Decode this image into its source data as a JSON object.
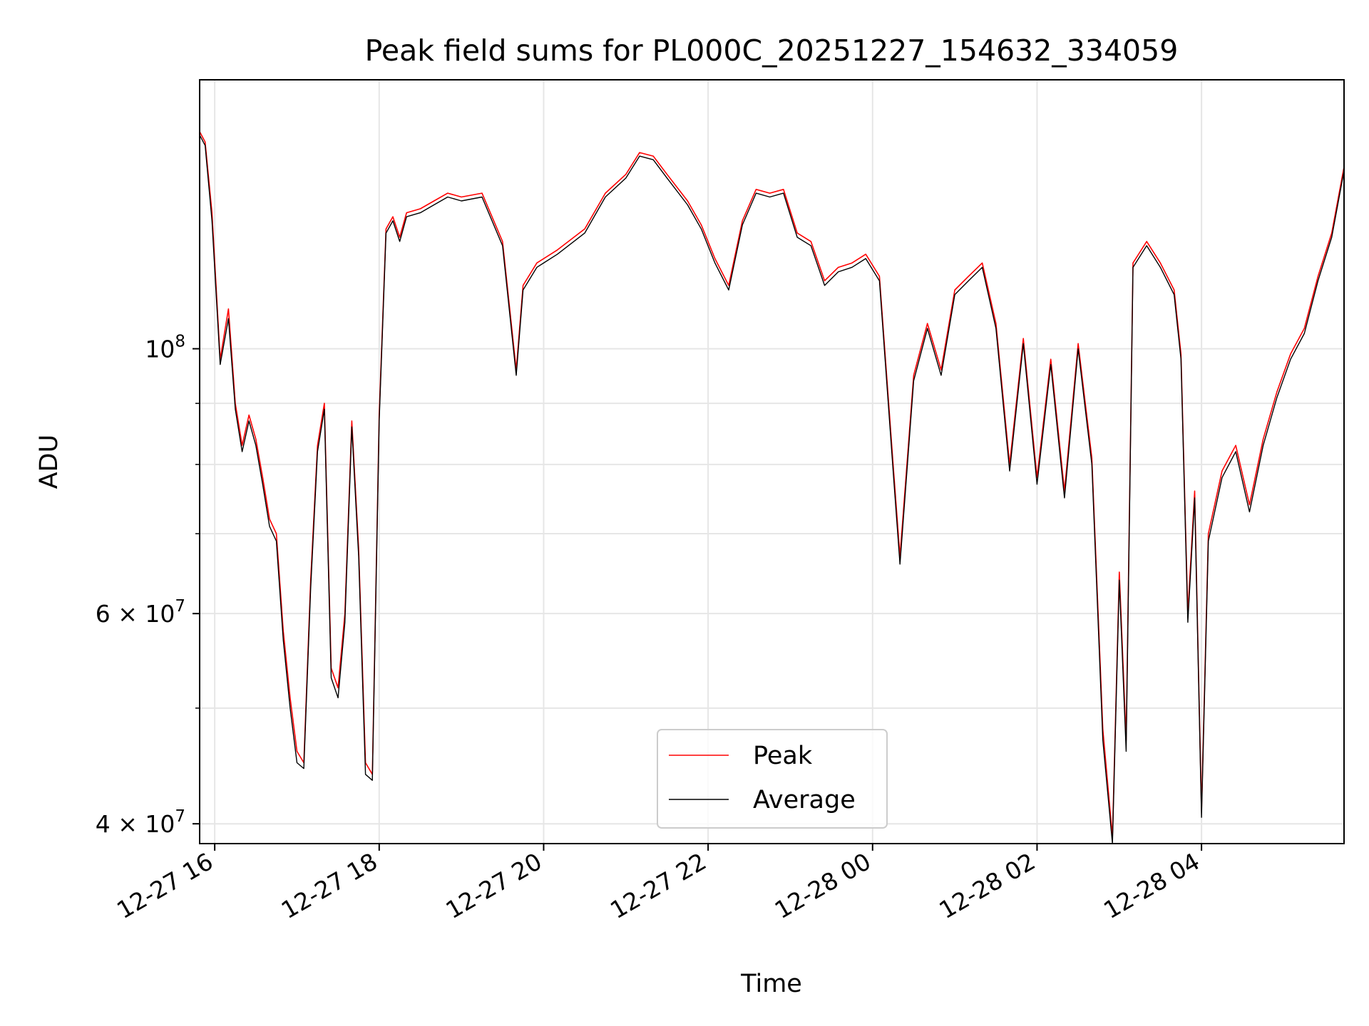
{
  "chart_data": {
    "type": "line",
    "title": "Peak field sums for PL000C_20251227_154632_334059",
    "xlabel": "Time",
    "ylabel": "ADU",
    "yscale": "log",
    "ylim": [
      38500000,
      168000000
    ],
    "xlim": [
      "2025-12-27 15:49",
      "2025-12-28 05:44"
    ],
    "grid": true,
    "legend": "bottom-center",
    "x_ticks": [
      {
        "t": "2025-12-27 16:00",
        "label": "12-27 16"
      },
      {
        "t": "2025-12-27 18:00",
        "label": "12-27 18"
      },
      {
        "t": "2025-12-27 20:00",
        "label": "12-27 20"
      },
      {
        "t": "2025-12-27 22:00",
        "label": "12-27 22"
      },
      {
        "t": "2025-12-28 00:00",
        "label": "12-28 00"
      },
      {
        "t": "2025-12-28 02:00",
        "label": "12-28 02"
      },
      {
        "t": "2025-12-28 04:00",
        "label": "12-28 04"
      }
    ],
    "y_ticks": [
      {
        "value": 40000000,
        "base": "4 × 10",
        "exp": "7"
      },
      {
        "value": 60000000,
        "base": "6 × 10",
        "exp": "7"
      },
      {
        "value": 100000000,
        "base": "10",
        "exp": "8"
      }
    ],
    "y_minor_ticks": [
      50000000,
      70000000,
      80000000,
      90000000
    ],
    "series": [
      {
        "name": "Peak",
        "color": "#ff0000"
      },
      {
        "name": "Average",
        "color": "#000000"
      }
    ],
    "x": [
      "2025-12-27 15:49",
      "2025-12-27 15:53",
      "2025-12-27 15:58",
      "2025-12-27 16:04",
      "2025-12-27 16:10",
      "2025-12-27 16:15",
      "2025-12-27 16:20",
      "2025-12-27 16:25",
      "2025-12-27 16:30",
      "2025-12-27 16:35",
      "2025-12-27 16:40",
      "2025-12-27 16:45",
      "2025-12-27 16:50",
      "2025-12-27 16:55",
      "2025-12-27 17:00",
      "2025-12-27 17:05",
      "2025-12-27 17:10",
      "2025-12-27 17:15",
      "2025-12-27 17:20",
      "2025-12-27 17:25",
      "2025-12-27 17:30",
      "2025-12-27 17:35",
      "2025-12-27 17:40",
      "2025-12-27 17:45",
      "2025-12-27 17:50",
      "2025-12-27 17:55",
      "2025-12-27 18:00",
      "2025-12-27 18:05",
      "2025-12-27 18:10",
      "2025-12-27 18:15",
      "2025-12-27 18:20",
      "2025-12-27 18:30",
      "2025-12-27 18:40",
      "2025-12-27 18:50",
      "2025-12-27 19:00",
      "2025-12-27 19:15",
      "2025-12-27 19:30",
      "2025-12-27 19:40",
      "2025-12-27 19:45",
      "2025-12-27 19:55",
      "2025-12-27 20:10",
      "2025-12-27 20:30",
      "2025-12-27 20:45",
      "2025-12-27 21:00",
      "2025-12-27 21:10",
      "2025-12-27 21:20",
      "2025-12-27 21:30",
      "2025-12-27 21:45",
      "2025-12-27 21:55",
      "2025-12-27 22:05",
      "2025-12-27 22:15",
      "2025-12-27 22:25",
      "2025-12-27 22:35",
      "2025-12-27 22:45",
      "2025-12-27 22:55",
      "2025-12-27 23:05",
      "2025-12-27 23:15",
      "2025-12-27 23:25",
      "2025-12-27 23:35",
      "2025-12-27 23:45",
      "2025-12-27 23:55",
      "2025-12-28 00:05",
      "2025-12-28 00:15",
      "2025-12-28 00:20",
      "2025-12-28 00:30",
      "2025-12-28 00:40",
      "2025-12-28 00:50",
      "2025-12-28 01:00",
      "2025-12-28 01:10",
      "2025-12-28 01:20",
      "2025-12-28 01:30",
      "2025-12-28 01:40",
      "2025-12-28 01:50",
      "2025-12-28 02:00",
      "2025-12-28 02:10",
      "2025-12-28 02:20",
      "2025-12-28 02:30",
      "2025-12-28 02:40",
      "2025-12-28 02:48",
      "2025-12-28 02:55",
      "2025-12-28 03:00",
      "2025-12-28 03:05",
      "2025-12-28 03:10",
      "2025-12-28 03:20",
      "2025-12-28 03:30",
      "2025-12-28 03:40",
      "2025-12-28 03:45",
      "2025-12-28 03:50",
      "2025-12-28 03:55",
      "2025-12-28 04:00",
      "2025-12-28 04:05",
      "2025-12-28 04:15",
      "2025-12-28 04:25",
      "2025-12-28 04:35",
      "2025-12-28 04:45",
      "2025-12-28 04:55",
      "2025-12-28 05:05",
      "2025-12-28 05:15",
      "2025-12-28 05:25",
      "2025-12-28 05:35",
      "2025-12-28 05:44"
    ],
    "peak": [
      152000000,
      149000000,
      130000000,
      98000000,
      108000000,
      90000000,
      83000000,
      88000000,
      84000000,
      78000000,
      72000000,
      70000000,
      58000000,
      51000000,
      46000000,
      45000000,
      64000000,
      83000000,
      90000000,
      54000000,
      52000000,
      60000000,
      87000000,
      68000000,
      45000000,
      44000000,
      88000000,
      126000000,
      129000000,
      124000000,
      130000000,
      131000000,
      133000000,
      135000000,
      134000000,
      135000000,
      123000000,
      96000000,
      113000000,
      118000000,
      121000000,
      126000000,
      135000000,
      140000000,
      146000000,
      145000000,
      140000000,
      133000000,
      127000000,
      119000000,
      113000000,
      128000000,
      136000000,
      135000000,
      136000000,
      125000000,
      123000000,
      114000000,
      117000000,
      118000000,
      120000000,
      115000000,
      80000000,
      67000000,
      95000000,
      105000000,
      96000000,
      112000000,
      115000000,
      118000000,
      105000000,
      80000000,
      102000000,
      78000000,
      98000000,
      76000000,
      101000000,
      81000000,
      48000000,
      39000000,
      65000000,
      47000000,
      118000000,
      123000000,
      118000000,
      112000000,
      99000000,
      60000000,
      76000000,
      41000000,
      70000000,
      79000000,
      83000000,
      74000000,
      84000000,
      92000000,
      99000000,
      104000000,
      115000000,
      125000000,
      142000000
    ],
    "average": [
      151000000,
      148000000,
      128000000,
      97000000,
      106000000,
      89000000,
      82000000,
      87000000,
      83000000,
      77000000,
      71000000,
      69000000,
      57000000,
      50000000,
      45000000,
      44500000,
      63000000,
      82000000,
      89000000,
      53000000,
      51000000,
      59000000,
      86000000,
      67000000,
      44000000,
      43500000,
      87000000,
      125000000,
      128000000,
      123000000,
      129000000,
      130000000,
      132000000,
      134000000,
      133000000,
      134000000,
      122000000,
      95000000,
      112000000,
      117000000,
      120000000,
      125000000,
      134000000,
      139000000,
      145000000,
      144000000,
      139000000,
      132000000,
      126000000,
      118000000,
      112000000,
      127000000,
      135000000,
      134000000,
      135000000,
      124000000,
      122000000,
      113000000,
      116000000,
      117000000,
      119000000,
      114000000,
      79000000,
      66000000,
      94000000,
      104000000,
      95000000,
      111000000,
      114000000,
      117000000,
      104000000,
      79000000,
      101000000,
      77000000,
      97000000,
      75000000,
      100000000,
      80000000,
      47000000,
      38500000,
      64000000,
      46000000,
      117000000,
      122000000,
      117000000,
      111000000,
      98000000,
      59000000,
      75000000,
      40500000,
      69000000,
      78000000,
      82000000,
      73000000,
      83000000,
      91000000,
      98000000,
      103000000,
      114000000,
      124000000,
      141000000
    ]
  }
}
